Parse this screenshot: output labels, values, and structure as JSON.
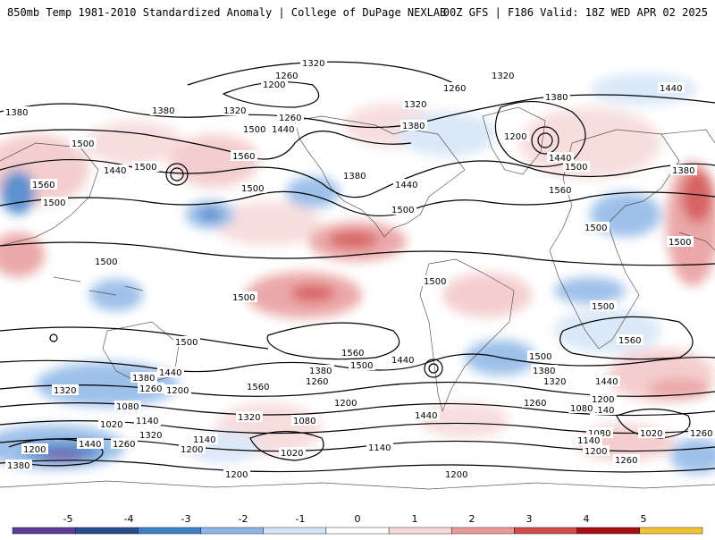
{
  "header": {
    "title_left": "850mb Temp 1981-2010 Standardized Anomaly | College of DuPage NEXLAB",
    "title_right": "00Z GFS | F186 Valid: 18Z WED APR 02 2025"
  },
  "colorbar": {
    "ticks": [
      "-5",
      "-4",
      "-3",
      "-2",
      "-1",
      "0",
      "1",
      "2",
      "3",
      "4",
      "5"
    ],
    "colors": [
      "#5e3c99",
      "#2b4c8c",
      "#3f7fc8",
      "#8db6e6",
      "#d4e4f7",
      "#ffffff",
      "#f7d8d8",
      "#e89a9a",
      "#d24a4a",
      "#a50f15",
      "#f1c232"
    ]
  },
  "contour_labels": [
    "1320",
    "1260",
    "1200",
    "1380",
    "1440",
    "1500",
    "1560",
    "1080",
    "1020",
    "1140"
  ]
}
